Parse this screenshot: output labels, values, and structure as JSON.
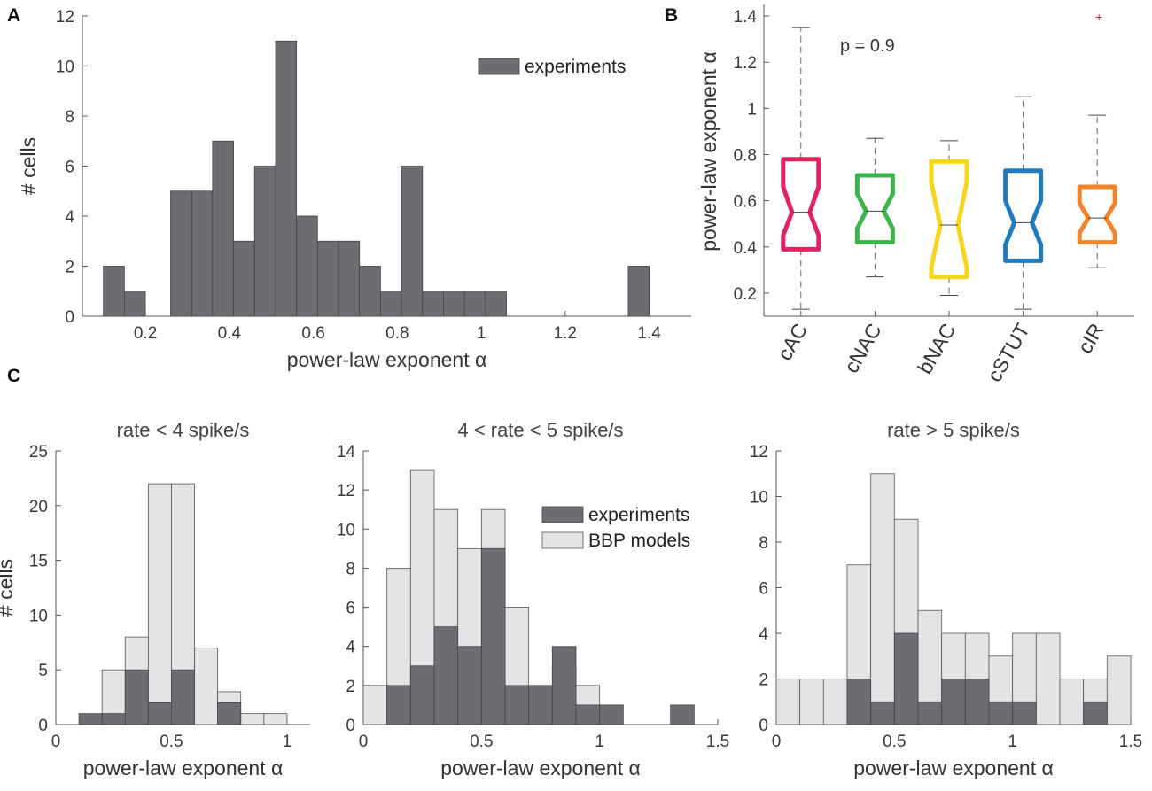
{
  "panels": {
    "A": "A",
    "B": "B",
    "C": "C"
  },
  "colors": {
    "experiments": "#6d6e72",
    "bbp_models": "#e3e4e6",
    "axis": "#555555"
  },
  "chart_data": [
    {
      "id": "A",
      "type": "bar",
      "title": "",
      "xlabel": "power-law exponent α",
      "ylabel": "# cells",
      "xlim": [
        0.05,
        1.5
      ],
      "ylim": [
        0,
        12
      ],
      "xticks": [
        0.2,
        0.4,
        0.6,
        0.8,
        1,
        1.2,
        1.4
      ],
      "yticks": [
        0,
        2,
        4,
        6,
        8,
        10,
        12
      ],
      "bin_width": 0.05,
      "legend": [
        "experiments"
      ],
      "legend_position": "top-right",
      "series": [
        {
          "name": "experiments",
          "bin_starts": [
            0.1,
            0.15,
            0.26,
            0.31,
            0.36,
            0.41,
            0.46,
            0.51,
            0.56,
            0.61,
            0.66,
            0.71,
            0.76,
            0.81,
            0.86,
            0.91,
            0.96,
            1.01,
            1.35
          ],
          "values": [
            2,
            1,
            5,
            5,
            7,
            3,
            6,
            11,
            4,
            3,
            3,
            2,
            1,
            6,
            1,
            1,
            1,
            1,
            2
          ]
        }
      ]
    },
    {
      "id": "B",
      "type": "boxplot",
      "title": "",
      "ylabel": "power-law exponent α",
      "ylim": [
        0.1,
        1.45
      ],
      "yticks": [
        0.2,
        0.4,
        0.6,
        0.8,
        1,
        1.2,
        1.4
      ],
      "annotation": "p = 0.9",
      "categories": [
        "cAC",
        "cNAC",
        "bNAC",
        "cSTUT",
        "cIR"
      ],
      "boxes": [
        {
          "name": "cAC",
          "color": "#e0245e",
          "whisker_low": 0.13,
          "q1": 0.39,
          "median": 0.55,
          "q3": 0.78,
          "whisker_high": 1.35,
          "notch_low": 0.45,
          "notch_high": 0.66,
          "outliers": []
        },
        {
          "name": "cNAC",
          "color": "#3bb54a",
          "whisker_low": 0.27,
          "q1": 0.42,
          "median": 0.555,
          "q3": 0.71,
          "whisker_high": 0.87,
          "notch_low": 0.48,
          "notch_high": 0.63,
          "outliers": []
        },
        {
          "name": "bNAC",
          "color": "#f7d51d",
          "whisker_low": 0.19,
          "q1": 0.27,
          "median": 0.495,
          "q3": 0.77,
          "whisker_high": 0.86,
          "notch_low": 0.31,
          "notch_high": 0.68,
          "outliers": []
        },
        {
          "name": "cSTUT",
          "color": "#1f7bbf",
          "whisker_low": 0.13,
          "q1": 0.34,
          "median": 0.505,
          "q3": 0.73,
          "whisker_high": 1.05,
          "notch_low": 0.41,
          "notch_high": 0.6,
          "outliers": []
        },
        {
          "name": "cIR",
          "color": "#f0842b",
          "whisker_low": 0.31,
          "q1": 0.42,
          "median": 0.525,
          "q3": 0.66,
          "whisker_high": 0.97,
          "notch_low": 0.46,
          "notch_high": 0.59,
          "outliers": [
            1.4
          ]
        }
      ]
    },
    {
      "id": "C1",
      "type": "bar",
      "title": "rate < 4 spike/s",
      "xlabel": "power-law exponent α",
      "ylabel": "# cells",
      "xlim": [
        0,
        1.1
      ],
      "ylim": [
        0,
        25
      ],
      "xticks": [
        0,
        0.5,
        1
      ],
      "yticks": [
        0,
        5,
        10,
        15,
        20,
        25
      ],
      "bin_width": 0.1,
      "bin_starts": [
        0.1,
        0.2,
        0.3,
        0.4,
        0.5,
        0.6,
        0.7,
        0.8,
        0.9
      ],
      "series": [
        {
          "name": "BBP models",
          "values": [
            0,
            5,
            8,
            22,
            22,
            7,
            3,
            1,
            1
          ]
        },
        {
          "name": "experiments",
          "values": [
            1,
            1,
            5,
            2,
            5,
            0,
            2,
            0,
            0
          ]
        }
      ]
    },
    {
      "id": "C2",
      "type": "bar",
      "title": "4 < rate < 5 spike/s",
      "xlabel": "power-law exponent α",
      "ylabel": "",
      "xlim": [
        0,
        1.5
      ],
      "ylim": [
        0,
        14
      ],
      "xticks": [
        0,
        0.5,
        1,
        1.5
      ],
      "yticks": [
        0,
        2,
        4,
        6,
        8,
        10,
        12,
        14
      ],
      "bin_width": 0.1,
      "bin_starts": [
        0.0,
        0.1,
        0.2,
        0.3,
        0.4,
        0.5,
        0.6,
        0.7,
        0.8,
        0.9,
        1.0,
        1.1,
        1.2,
        1.3
      ],
      "legend": [
        "experiments",
        "BBP models"
      ],
      "legend_position": "top-right",
      "series": [
        {
          "name": "BBP models",
          "values": [
            2,
            8,
            13,
            11,
            9,
            11,
            6,
            2,
            3,
            2,
            0,
            0,
            0,
            0
          ]
        },
        {
          "name": "experiments",
          "values": [
            0,
            2,
            3,
            5,
            4,
            9,
            2,
            2,
            4,
            1,
            1,
            0,
            0,
            1
          ]
        }
      ]
    },
    {
      "id": "C3",
      "type": "bar",
      "title": "rate > 5 spike/s",
      "xlabel": "power-law exponent α",
      "ylabel": "",
      "xlim": [
        0,
        1.5
      ],
      "ylim": [
        0,
        12
      ],
      "xticks": [
        0,
        0.5,
        1,
        1.5
      ],
      "yticks": [
        0,
        2,
        4,
        6,
        8,
        10,
        12
      ],
      "bin_width": 0.1,
      "bin_starts": [
        0.0,
        0.1,
        0.2,
        0.3,
        0.4,
        0.5,
        0.6,
        0.7,
        0.8,
        0.9,
        1.0,
        1.1,
        1.2,
        1.3,
        1.4
      ],
      "series": [
        {
          "name": "BBP models",
          "values": [
            2,
            2,
            2,
            7,
            11,
            9,
            5,
            4,
            4,
            3,
            4,
            4,
            2,
            2,
            3
          ]
        },
        {
          "name": "experiments",
          "values": [
            0,
            0,
            0,
            2,
            1,
            4,
            1,
            2,
            2,
            1,
            1,
            0,
            0,
            1,
            0
          ]
        }
      ]
    }
  ]
}
